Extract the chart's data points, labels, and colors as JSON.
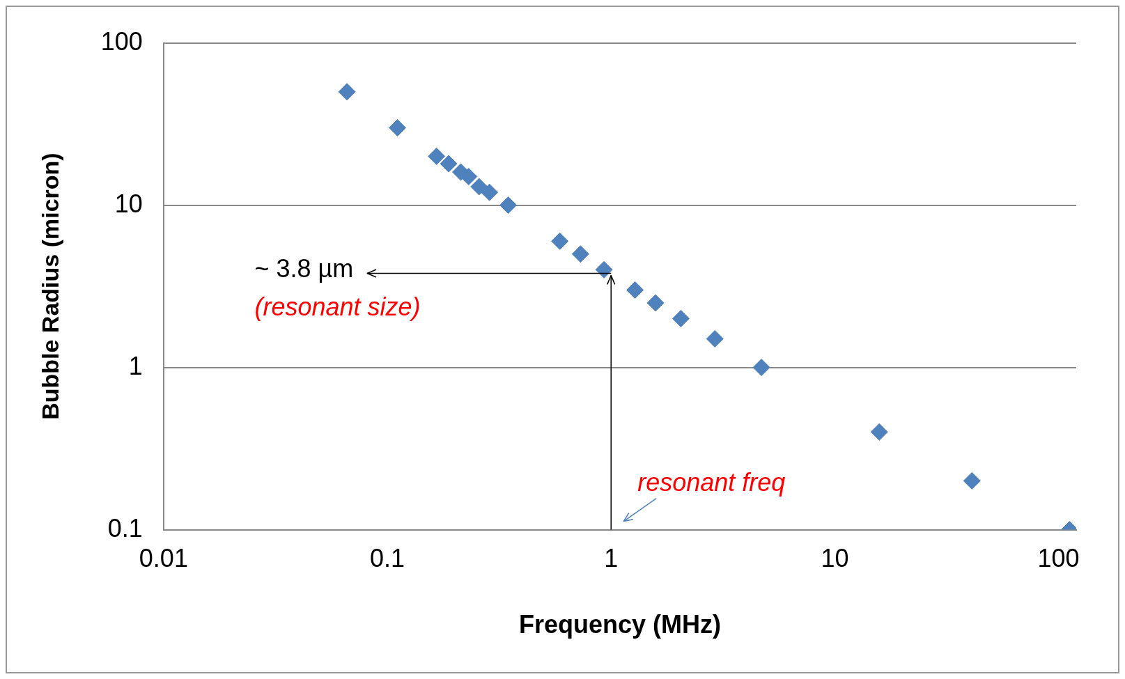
{
  "chart_data": {
    "type": "scatter",
    "xlabel": "Frequency (MHz)",
    "ylabel": "Bubble Radius (micron)",
    "x": [
      0.066,
      0.111,
      0.166,
      0.188,
      0.213,
      0.231,
      0.257,
      0.286,
      0.347,
      0.59,
      0.73,
      0.93,
      1.28,
      1.58,
      2.05,
      2.91,
      4.7,
      15.8,
      41,
      112
    ],
    "series": [
      {
        "color": "#4f81bd",
        "values": [
          50,
          30,
          20,
          18,
          16,
          15,
          13,
          12,
          10,
          6,
          5,
          4,
          3,
          2.5,
          2,
          1.5,
          1,
          0.4,
          0.2,
          0.1
        ]
      }
    ],
    "log": "xy",
    "xlim": [
      0.01,
      120
    ],
    "xticks": [
      0.01,
      0.1,
      1,
      10,
      100
    ],
    "ylim": [
      0.1,
      100
    ],
    "yticks": [
      0.1,
      1,
      10,
      100
    ],
    "grid": "y",
    "marker": "diamond",
    "legend": false,
    "ref_lines": [
      {
        "axis": "y",
        "value": 3.8,
        "label": "~ 3.8 µm",
        "color": "#000000"
      },
      {
        "axis": "x",
        "value": 1,
        "label": "resonant freq",
        "color": "#000000"
      }
    ],
    "annotations": [
      "(resonant size)"
    ]
  }
}
